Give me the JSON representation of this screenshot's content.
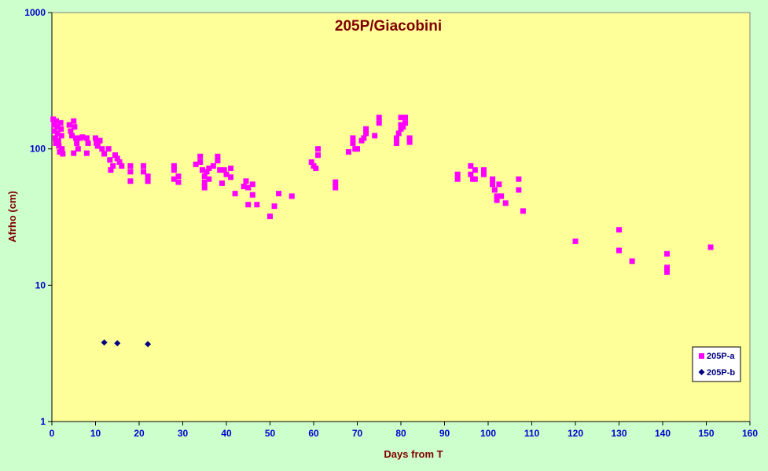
{
  "chart_data": {
    "type": "scatter",
    "title": "205P/Giacobini",
    "xlabel": "Days from  T",
    "ylabel": "Afrho (cm)",
    "xlim": [
      0,
      160
    ],
    "ylim": [
      1,
      1000
    ],
    "y_scale": "log",
    "x_ticks": [
      "0",
      "10",
      "20",
      "30",
      "40",
      "50",
      "60",
      "70",
      "80",
      "90",
      "100",
      "110",
      "120",
      "130",
      "140",
      "150",
      "160"
    ],
    "y_ticks": [
      "1",
      "10",
      "100",
      "1000"
    ],
    "grid": false,
    "legend_position": "bottom-right",
    "colors": {
      "plot_bg": "#ffff99",
      "outer_bg": "#ccffcc",
      "series_a": "#ff00ff",
      "series_b": "#000080",
      "title": "#800000",
      "ticks": "#0000cc"
    },
    "series": [
      {
        "name": "205P-a",
        "marker": "square",
        "color": "#ff00ff",
        "points": [
          [
            0.3,
            165
          ],
          [
            0.5,
            150
          ],
          [
            0.6,
            135
          ],
          [
            0.8,
            120
          ],
          [
            0.9,
            110
          ],
          [
            1,
            160
          ],
          [
            1.2,
            145
          ],
          [
            1.3,
            130
          ],
          [
            1.5,
            115
          ],
          [
            1.6,
            105
          ],
          [
            1.8,
            95
          ],
          [
            2,
            155
          ],
          [
            2.1,
            140
          ],
          [
            2.2,
            125
          ],
          [
            2.3,
            100
          ],
          [
            2.5,
            92
          ],
          [
            4,
            150
          ],
          [
            4.3,
            135
          ],
          [
            4.6,
            125
          ],
          [
            5,
            160
          ],
          [
            5.2,
            145
          ],
          [
            5.5,
            120
          ],
          [
            5.7,
            110
          ],
          [
            6,
            100
          ],
          [
            5,
            93
          ],
          [
            6.5,
            120
          ],
          [
            7,
            122
          ],
          [
            8,
            120
          ],
          [
            8.3,
            110
          ],
          [
            8,
            93
          ],
          [
            10,
            120
          ],
          [
            10.2,
            110
          ],
          [
            10.5,
            105
          ],
          [
            11,
            115
          ],
          [
            11.5,
            100
          ],
          [
            12,
            92
          ],
          [
            13,
            100
          ],
          [
            13.3,
            83
          ],
          [
            13.5,
            70
          ],
          [
            14,
            75
          ],
          [
            14.5,
            90
          ],
          [
            15,
            85
          ],
          [
            15.5,
            80
          ],
          [
            16,
            75
          ],
          [
            18,
            75
          ],
          [
            18,
            68
          ],
          [
            18,
            58
          ],
          [
            21,
            75
          ],
          [
            21,
            68
          ],
          [
            22,
            63
          ],
          [
            22,
            58
          ],
          [
            28,
            75
          ],
          [
            28,
            70
          ],
          [
            28,
            60
          ],
          [
            29,
            63
          ],
          [
            29,
            57
          ],
          [
            33,
            77
          ],
          [
            34,
            88
          ],
          [
            34,
            80
          ],
          [
            34.5,
            70
          ],
          [
            35,
            63
          ],
          [
            35,
            57
          ],
          [
            35,
            52
          ],
          [
            35.5,
            68
          ],
          [
            36,
            72
          ],
          [
            36,
            60
          ],
          [
            37,
            75
          ],
          [
            38,
            88
          ],
          [
            38,
            82
          ],
          [
            38.5,
            70
          ],
          [
            39,
            56
          ],
          [
            39.5,
            70
          ],
          [
            40,
            65
          ],
          [
            41,
            72
          ],
          [
            41,
            62
          ],
          [
            42,
            47
          ],
          [
            44,
            53
          ],
          [
            44.5,
            58
          ],
          [
            45,
            52
          ],
          [
            45,
            39
          ],
          [
            46,
            55
          ],
          [
            46,
            46
          ],
          [
            47,
            39
          ],
          [
            50,
            32
          ],
          [
            51,
            38
          ],
          [
            52,
            47
          ],
          [
            55,
            45
          ],
          [
            59.5,
            80
          ],
          [
            60,
            75
          ],
          [
            60.5,
            72
          ],
          [
            61,
            90
          ],
          [
            61,
            100
          ],
          [
            65,
            57
          ],
          [
            65,
            52
          ],
          [
            68,
            95
          ],
          [
            69,
            110
          ],
          [
            69,
            120
          ],
          [
            69.5,
            100
          ],
          [
            70,
            100
          ],
          [
            71,
            115
          ],
          [
            71.5,
            120
          ],
          [
            72,
            140
          ],
          [
            72,
            130
          ],
          [
            74,
            125
          ],
          [
            75,
            170
          ],
          [
            75,
            155
          ],
          [
            79,
            120
          ],
          [
            79,
            110
          ],
          [
            79.5,
            130
          ],
          [
            80,
            150
          ],
          [
            80,
            140
          ],
          [
            80,
            170
          ],
          [
            80.5,
            145
          ],
          [
            81,
            170
          ],
          [
            81,
            155
          ],
          [
            82,
            120
          ],
          [
            82,
            112
          ],
          [
            93,
            65
          ],
          [
            93,
            60
          ],
          [
            96,
            75
          ],
          [
            96,
            65
          ],
          [
            96.5,
            60
          ],
          [
            97,
            70
          ],
          [
            97,
            60
          ],
          [
            99,
            70
          ],
          [
            99,
            65
          ],
          [
            101,
            60
          ],
          [
            101,
            55
          ],
          [
            101.5,
            50
          ],
          [
            102,
            45
          ],
          [
            102,
            42
          ],
          [
            102.5,
            55
          ],
          [
            103,
            45
          ],
          [
            104,
            40
          ],
          [
            107,
            60
          ],
          [
            107,
            50
          ],
          [
            108,
            35
          ],
          [
            120,
            21
          ],
          [
            130,
            25.5
          ],
          [
            130,
            18
          ],
          [
            133,
            15
          ],
          [
            141,
            17
          ],
          [
            141,
            13.5
          ],
          [
            141,
            12.5
          ],
          [
            151,
            19
          ]
        ]
      },
      {
        "name": "205P-b",
        "marker": "diamond",
        "color": "#000080",
        "points": [
          [
            12,
            3.8
          ],
          [
            15,
            3.75
          ],
          [
            22,
            3.7
          ]
        ]
      }
    ]
  }
}
